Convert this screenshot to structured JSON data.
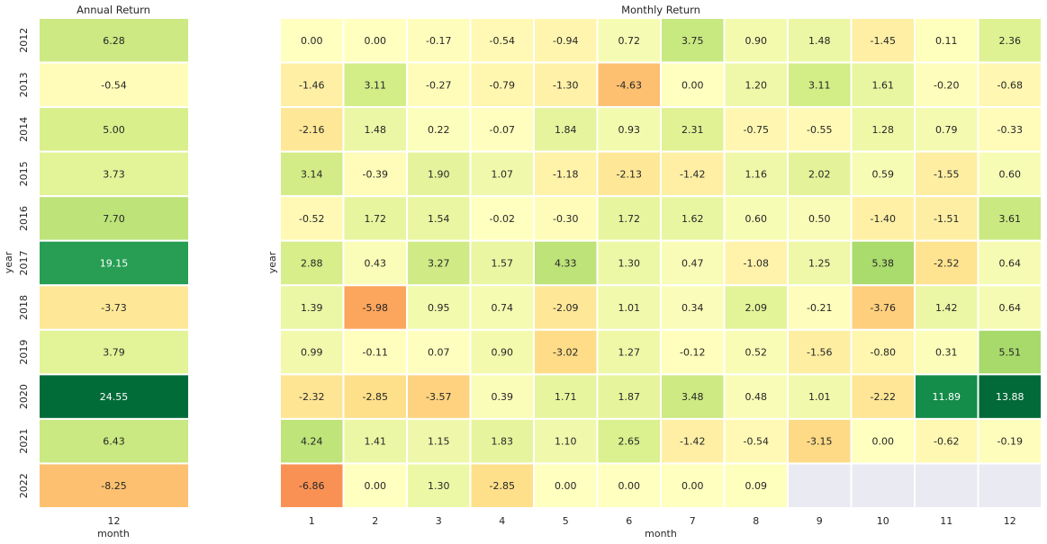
{
  "colors": {
    "scale": [
      "#a50026",
      "#d73027",
      "#f46d43",
      "#fdae61",
      "#fee08b",
      "#ffffbf",
      "#d9ef8b",
      "#a6d96a",
      "#66bd63",
      "#1a9850",
      "#006837"
    ],
    "missing": "#eaeaf2"
  },
  "chart_data": [
    {
      "type": "heatmap",
      "title": "Annual Return",
      "xlabel": "month",
      "ylabel": "year",
      "x": [
        "12"
      ],
      "y": [
        "2012",
        "2013",
        "2014",
        "2015",
        "2016",
        "2017",
        "2018",
        "2019",
        "2020",
        "2021",
        "2022"
      ],
      "values": [
        [
          6.28
        ],
        [
          -0.54
        ],
        [
          5.0
        ],
        [
          3.73
        ],
        [
          7.7
        ],
        [
          19.15
        ],
        [
          -3.73
        ],
        [
          3.79
        ],
        [
          24.55
        ],
        [
          6.43
        ],
        [
          -8.25
        ]
      ],
      "value_format": "0.00",
      "colormap": "RdYlGn",
      "color_range": [
        -25,
        25
      ]
    },
    {
      "type": "heatmap",
      "title": "Monthly Return",
      "xlabel": "month",
      "ylabel": "year",
      "x": [
        "1",
        "2",
        "3",
        "4",
        "5",
        "6",
        "7",
        "8",
        "9",
        "10",
        "11",
        "12"
      ],
      "y": [
        "2012",
        "2013",
        "2014",
        "2015",
        "2016",
        "2017",
        "2018",
        "2019",
        "2020",
        "2021",
        "2022"
      ],
      "values": [
        [
          0.0,
          0.0,
          -0.17,
          -0.54,
          -0.94,
          0.72,
          3.75,
          0.9,
          1.48,
          -1.45,
          0.11,
          2.36
        ],
        [
          -1.46,
          3.11,
          -0.27,
          -0.79,
          -1.3,
          -4.63,
          0.0,
          1.2,
          3.11,
          1.61,
          -0.2,
          -0.68
        ],
        [
          -2.16,
          1.48,
          0.22,
          -0.07,
          1.84,
          0.93,
          2.31,
          -0.75,
          -0.55,
          1.28,
          0.79,
          -0.33
        ],
        [
          3.14,
          -0.39,
          1.9,
          1.07,
          -1.18,
          -2.13,
          -1.42,
          1.16,
          2.02,
          0.59,
          -1.55,
          0.6
        ],
        [
          -0.52,
          1.72,
          1.54,
          -0.02,
          -0.3,
          1.72,
          1.62,
          0.6,
          0.5,
          -1.4,
          -1.51,
          3.61
        ],
        [
          2.88,
          0.43,
          3.27,
          1.57,
          4.33,
          1.3,
          0.47,
          -1.08,
          1.25,
          5.38,
          -2.52,
          0.64
        ],
        [
          1.39,
          -5.98,
          0.95,
          0.74,
          -2.09,
          1.01,
          0.34,
          2.09,
          -0.21,
          -3.76,
          1.42,
          0.64
        ],
        [
          0.99,
          -0.11,
          0.07,
          0.9,
          -3.02,
          1.27,
          -0.12,
          0.52,
          -1.56,
          -0.8,
          0.31,
          5.51
        ],
        [
          -2.32,
          -2.85,
          -3.57,
          0.39,
          1.71,
          1.87,
          3.48,
          0.48,
          1.01,
          -2.22,
          11.89,
          13.88
        ],
        [
          4.24,
          1.41,
          1.15,
          1.83,
          1.1,
          2.65,
          -1.42,
          -0.54,
          -3.15,
          0.0,
          -0.62,
          -0.19
        ],
        [
          -6.86,
          0.0,
          1.3,
          -2.85,
          0.0,
          0.0,
          0.0,
          0.09,
          null,
          null,
          null,
          null
        ]
      ],
      "value_format": "0.00",
      "colormap": "RdYlGn",
      "color_range": [
        -14,
        14
      ]
    }
  ]
}
